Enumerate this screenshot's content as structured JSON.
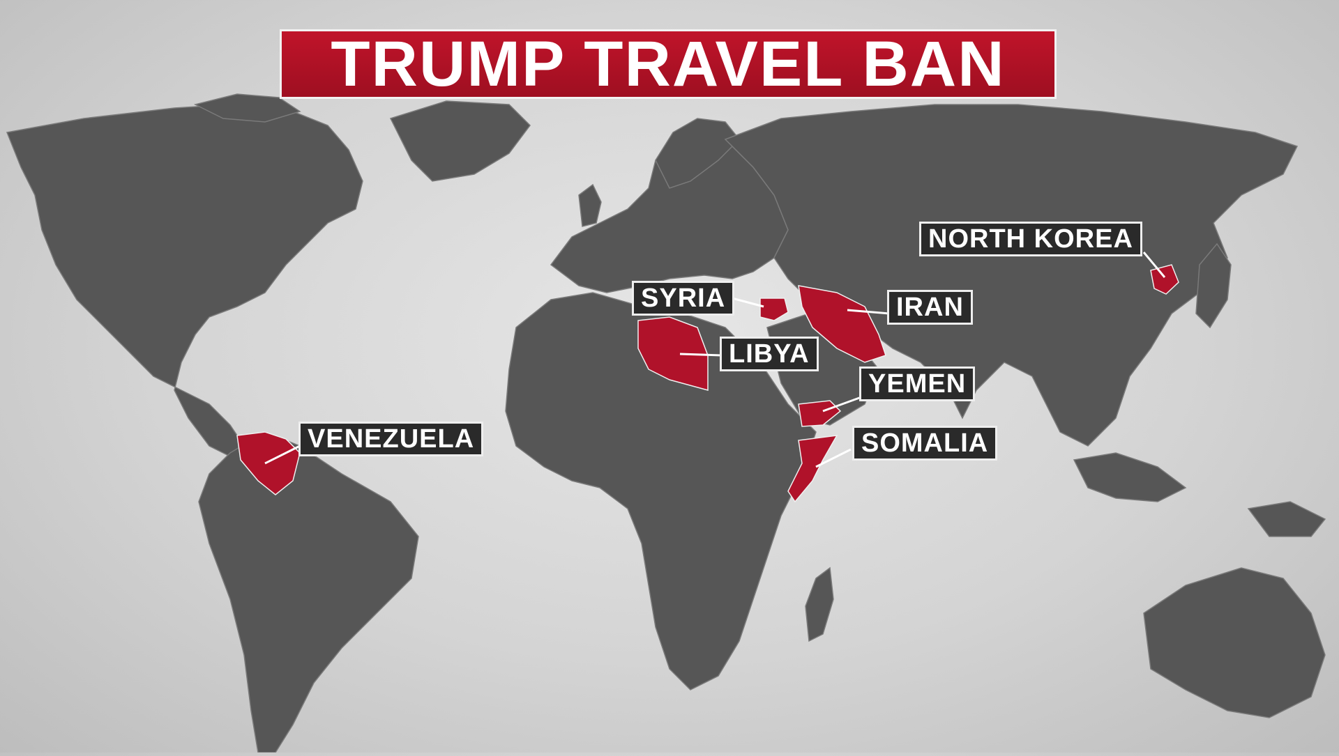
{
  "title": "TRUMP TRAVEL BAN",
  "colors": {
    "banner": "#b0122a",
    "highlight": "#b0122a",
    "land": "#565656",
    "border": "#7a7a7a",
    "background": "#dcdcdc",
    "label_bg": "#2a2a2a",
    "label_text": "#ffffff"
  },
  "countries": [
    {
      "id": "venezuela",
      "label": "VENEZUELA"
    },
    {
      "id": "syria",
      "label": "SYRIA"
    },
    {
      "id": "libya",
      "label": "LIBYA"
    },
    {
      "id": "iran",
      "label": "IRAN"
    },
    {
      "id": "yemen",
      "label": "YEMEN"
    },
    {
      "id": "somalia",
      "label": "SOMALIA"
    },
    {
      "id": "north-korea",
      "label": "NORTH KOREA"
    }
  ]
}
